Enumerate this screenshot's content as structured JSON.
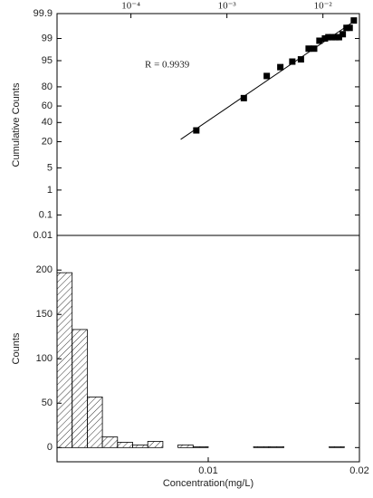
{
  "chart_data": [
    {
      "type": "scatter",
      "ylabel": "Cumulative Counts",
      "annotation": "R = 0.9939",
      "x": [
        0.00048,
        0.0015,
        0.0026,
        0.0036,
        0.0048,
        0.0059,
        0.0071,
        0.0081,
        0.0092,
        0.0105,
        0.0114,
        0.0124,
        0.0135,
        0.0147,
        0.0161,
        0.0176,
        0.019,
        0.021
      ],
      "values": [
        31,
        69,
        88,
        92.6,
        94.7,
        95.4,
        97.8,
        97.8,
        98.8,
        99.0,
        99.1,
        99.1,
        99.1,
        99.1,
        99.3,
        99.6,
        99.6,
        99.8
      ],
      "fit_line": {
        "x": [
          0.00033,
          0.02
        ],
        "values": [
          22,
          99.75
        ]
      },
      "color": "#000000",
      "xscale": "log",
      "yscale": "probit",
      "xlim": [
        1.7e-05,
        0.024
      ],
      "xticks": [
        {
          "value": 0.0001,
          "label": "10⁻⁴"
        },
        {
          "value": 0.001,
          "label": "10⁻³"
        },
        {
          "value": 0.01,
          "label": "10⁻²"
        }
      ],
      "ylim": [
        0.01,
        99.9
      ],
      "yticks": [
        0.01,
        0.1,
        1,
        5,
        20,
        40,
        60,
        80,
        95,
        99,
        99.9
      ]
    },
    {
      "type": "histogram",
      "xlabel": "Concentration(mg/L)",
      "ylabel": "Counts",
      "bins": [
        0,
        0.001,
        0.002,
        0.003,
        0.004,
        0.005,
        0.006,
        0.007,
        0.008,
        0.009,
        0.01,
        0.011,
        0.012,
        0.013,
        0.014,
        0.015,
        0.016,
        0.017,
        0.018,
        0.019,
        0.02
      ],
      "values": [
        197,
        133,
        57,
        12,
        6,
        3,
        7,
        0,
        3,
        1,
        0,
        0,
        0,
        1,
        1,
        0,
        0,
        0,
        1,
        0
      ],
      "xlim": [
        0,
        0.02
      ],
      "xticks": [
        0.01,
        0.02
      ],
      "ylim": [
        -16,
        239
      ],
      "yticks": [
        0,
        50,
        100,
        150,
        200
      ]
    }
  ]
}
